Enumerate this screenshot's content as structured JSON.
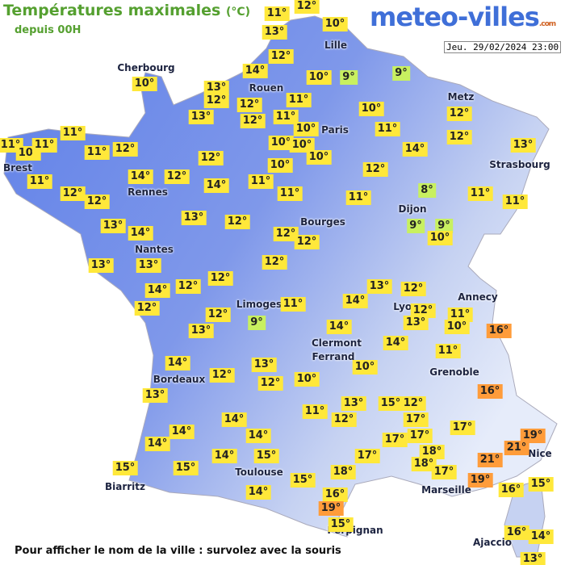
{
  "header": {
    "title": "Températures maximales",
    "unit": "(°C)",
    "subtitle": "depuis 00H"
  },
  "logo": {
    "name": "meteo-villes",
    "suffix": ".com"
  },
  "timestamp": "Jeu. 29/02/2024 23:00",
  "cities": [
    "Lille",
    "Cherbourg",
    "Rouen",
    "Paris",
    "Metz",
    "Strasbourg",
    "Brest",
    "Rennes",
    "Dijon",
    "Bourges",
    "Nantes",
    "Annecy",
    "Limoges",
    "Lyon",
    "Clermont",
    "Ferrand",
    "Grenoble",
    "Bordeaux",
    "Nice",
    "Toulouse",
    "Marseille",
    "Biarritz",
    "Perpignan",
    "Ajaccio"
  ],
  "temperatures": [
    "11°",
    "12°",
    "13°",
    "10°",
    "12°",
    "14°",
    "10°",
    "9°",
    "9°",
    "13°",
    "12°",
    "12°",
    "12°",
    "11°",
    "11°",
    "10°",
    "10°",
    "11°",
    "12°",
    "12°",
    "13°",
    "13°",
    "10°",
    "11°",
    "11°",
    "10°",
    "11°",
    "11°",
    "12°",
    "11°",
    "12°",
    "12°",
    "14°",
    "12°",
    "12°",
    "14°",
    "11°",
    "10°",
    "10°",
    "10°",
    "10°",
    "14°",
    "12°",
    "11°",
    "11°",
    "8°",
    "11°",
    "11°",
    "13°",
    "14°",
    "13°",
    "12°",
    "12°",
    "12°",
    "13°",
    "13°",
    "12°",
    "9°",
    "9°",
    "10°",
    "14°",
    "12°",
    "12°",
    "12°",
    "12°",
    "13°",
    "9°",
    "11°",
    "14°",
    "13°",
    "12°",
    "12°",
    "11°",
    "10°",
    "16°",
    "13°",
    "14°",
    "14°",
    "11°",
    "14°",
    "13°",
    "12°",
    "12°",
    "10°",
    "10°",
    "13°",
    "11°",
    "13°",
    "12°",
    "15°",
    "12°",
    "17°",
    "16°",
    "14°",
    "14°",
    "14°",
    "14°",
    "14°",
    "15°",
    "17°",
    "17°",
    "17°",
    "17°",
    "18°",
    "18°",
    "17°",
    "21°",
    "19°",
    "21°",
    "15°",
    "15°",
    "15°",
    "18°",
    "19°",
    "16°",
    "15°",
    "14°",
    "16°",
    "19°",
    "15°",
    "16°",
    "14°",
    "13°"
  ],
  "footer": "Pour afficher le nom de la ville : survolez avec la souris"
}
